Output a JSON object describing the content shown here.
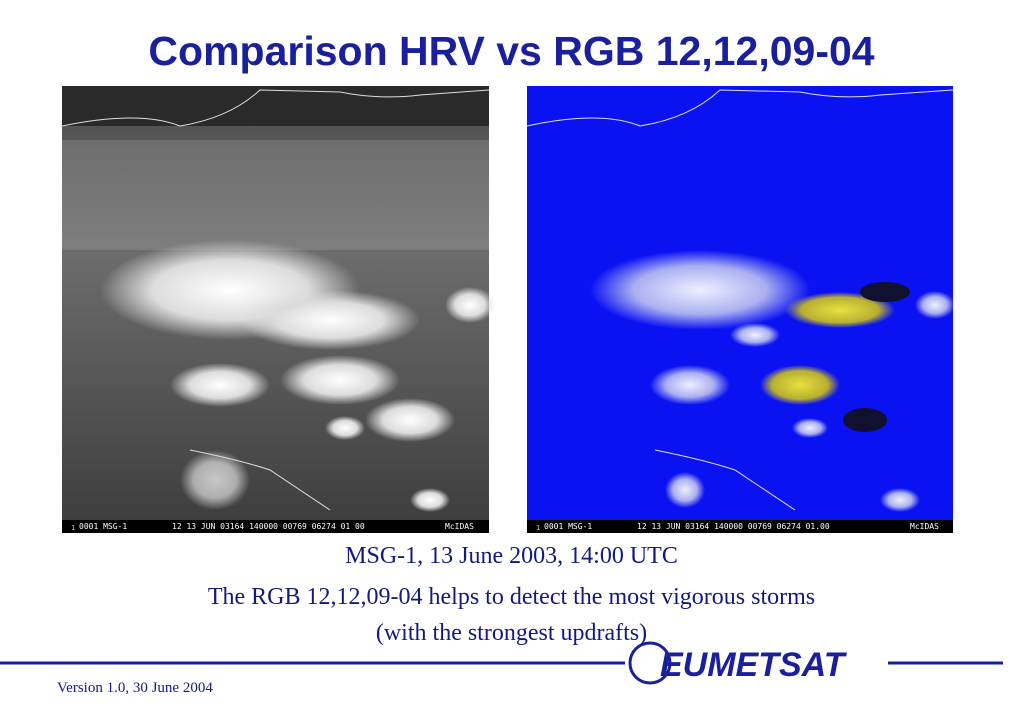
{
  "header": {
    "title": "Comparison HRV vs RGB 12,12,09-04"
  },
  "images": [
    {
      "frame": "1",
      "id": "0001 MSG-1",
      "stamp": "12 13 JUN 03164 140000 00769 06274 01 00",
      "source": "McIDAS"
    },
    {
      "frame": "1",
      "id": "0001 MSG-1",
      "stamp": "12 13 JUN 03164 140000 00769 06274 01.00",
      "source": "McIDAS"
    }
  ],
  "caption": {
    "lines": [
      "MSG-1, 13 June 2003, 14:00 UTC",
      "The RGB 12,12,09-04 helps to detect the most vigorous storms",
      "(with the strongest updrafts)"
    ]
  },
  "footer": {
    "logo": "EUMETSAT",
    "version": "Version 1.0, 30 June 2004"
  }
}
